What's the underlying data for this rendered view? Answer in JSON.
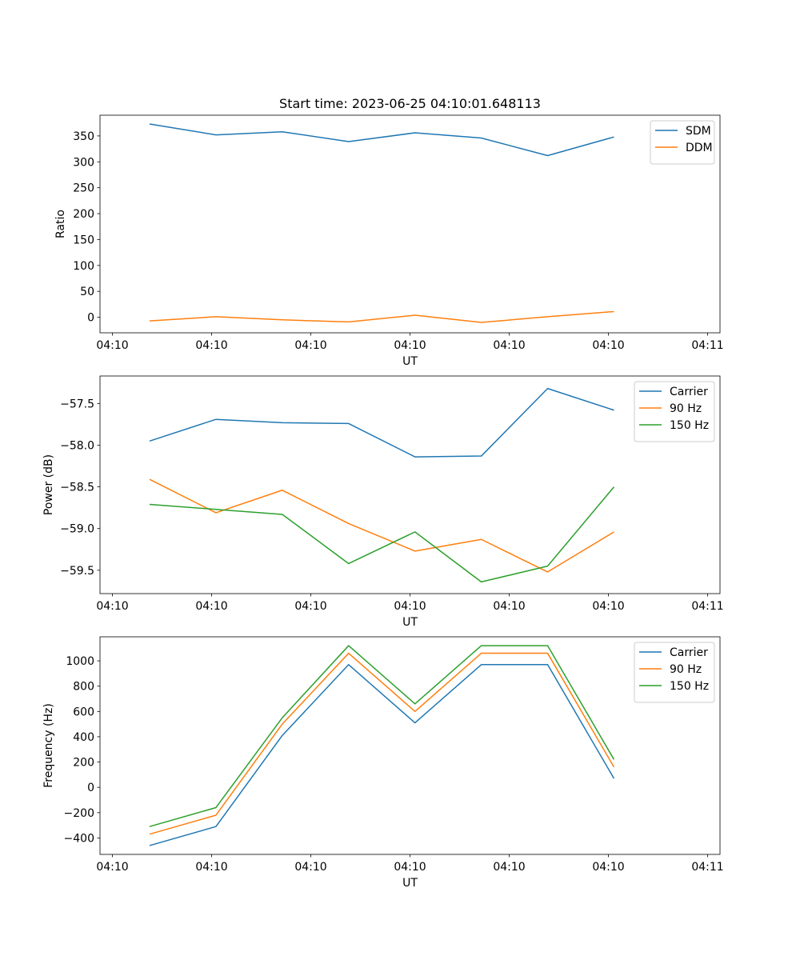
{
  "chart_data": [
    {
      "type": "line",
      "title": "Start time: 2023-06-25 04:10:01.648113",
      "xlabel": "UT",
      "ylabel": "Ratio",
      "ylim": [
        -30,
        390
      ],
      "yticks": [
        0,
        50,
        100,
        150,
        200,
        250,
        300,
        350
      ],
      "xlim": [
        0,
        1
      ],
      "x": [
        0.08,
        0.187,
        0.294,
        0.401,
        0.508,
        0.615,
        0.722,
        0.829
      ],
      "xticks": [
        0.02,
        0.18,
        0.34,
        0.5,
        0.66,
        0.82,
        0.98
      ],
      "xtick_labels": [
        "04:10",
        "04:10",
        "04:10",
        "04:10",
        "04:10",
        "04:10",
        "04:11"
      ],
      "legend": "top-right",
      "series": [
        {
          "name": "SDM",
          "color": "#1f77b4",
          "values": [
            373,
            352,
            358,
            339,
            356,
            346,
            312,
            348
          ]
        },
        {
          "name": "DDM",
          "color": "#ff7f0e",
          "values": [
            -7,
            1,
            -5,
            -9,
            4,
            -10,
            1,
            11
          ]
        }
      ]
    },
    {
      "type": "line",
      "title": "",
      "xlabel": "UT",
      "ylabel": "Power (dB)",
      "ylim": [
        -59.78,
        -57.17
      ],
      "yticks": [
        -59.5,
        -59.0,
        -58.5,
        -58.0,
        -57.5
      ],
      "ytick_labels": [
        "−59.5",
        "−59.0",
        "−58.5",
        "−58.0",
        "−57.5"
      ],
      "xlim": [
        0,
        1
      ],
      "x": [
        0.08,
        0.187,
        0.294,
        0.401,
        0.508,
        0.615,
        0.722,
        0.829
      ],
      "xticks": [
        0.02,
        0.18,
        0.34,
        0.5,
        0.66,
        0.82,
        0.98
      ],
      "xtick_labels": [
        "04:10",
        "04:10",
        "04:10",
        "04:10",
        "04:10",
        "04:10",
        "04:11"
      ],
      "legend": "top-right",
      "series": [
        {
          "name": "Carrier",
          "color": "#1f77b4",
          "values": [
            -57.95,
            -57.69,
            -57.73,
            -57.74,
            -58.14,
            -58.13,
            -57.32,
            -57.58
          ]
        },
        {
          "name": "90 Hz",
          "color": "#ff7f0e",
          "values": [
            -58.41,
            -58.81,
            -58.54,
            -58.94,
            -59.27,
            -59.13,
            -59.52,
            -59.04
          ]
        },
        {
          "name": "150 Hz",
          "color": "#2ca02c",
          "values": [
            -58.71,
            -58.77,
            -58.83,
            -59.42,
            -59.04,
            -59.64,
            -59.45,
            -58.5
          ]
        }
      ]
    },
    {
      "type": "line",
      "title": "",
      "xlabel": "UT",
      "ylabel": "Frequency (Hz)",
      "ylim": [
        -530,
        1190
      ],
      "yticks": [
        -400,
        -200,
        0,
        200,
        400,
        600,
        800,
        1000
      ],
      "ytick_labels": [
        "−400",
        "−200",
        "0",
        "200",
        "400",
        "600",
        "800",
        "1000"
      ],
      "xlim": [
        0,
        1
      ],
      "x": [
        0.08,
        0.187,
        0.294,
        0.401,
        0.508,
        0.615,
        0.722,
        0.829
      ],
      "xticks": [
        0.02,
        0.18,
        0.34,
        0.5,
        0.66,
        0.82,
        0.98
      ],
      "xtick_labels": [
        "04:10",
        "04:10",
        "04:10",
        "04:10",
        "04:10",
        "04:10",
        "04:11"
      ],
      "legend": "top-right",
      "series": [
        {
          "name": "Carrier",
          "color": "#1f77b4",
          "values": [
            -460,
            -310,
            410,
            970,
            510,
            970,
            970,
            70
          ]
        },
        {
          "name": "90 Hz",
          "color": "#ff7f0e",
          "values": [
            -370,
            -220,
            500,
            1060,
            600,
            1060,
            1060,
            160
          ]
        },
        {
          "name": "150 Hz",
          "color": "#2ca02c",
          "values": [
            -310,
            -160,
            550,
            1120,
            660,
            1120,
            1120,
            220
          ]
        }
      ]
    }
  ]
}
